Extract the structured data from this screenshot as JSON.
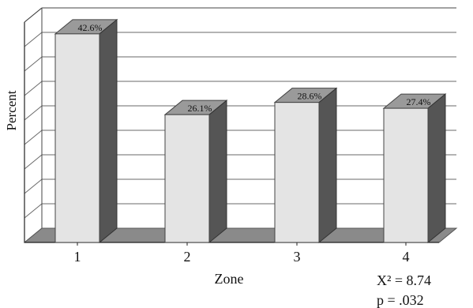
{
  "chart_data": {
    "type": "bar",
    "categories": [
      "1",
      "2",
      "3",
      "4"
    ],
    "values": [
      42.6,
      26.1,
      28.6,
      27.4
    ],
    "value_labels": [
      "42.6%",
      "26.1%",
      "28.6%",
      "27.4%"
    ],
    "xlabel": "Zone",
    "ylabel": "Percent",
    "ylim": [
      0,
      45
    ],
    "grid": true,
    "annotations": [
      "X² = 8.74",
      "p = .032"
    ],
    "colors": {
      "bar_front": "#e4e4e4",
      "bar_side": "#555555",
      "bar_top": "#9a9a9a",
      "grid": "#6a6a6a",
      "floor": "#8a8a8a"
    }
  }
}
